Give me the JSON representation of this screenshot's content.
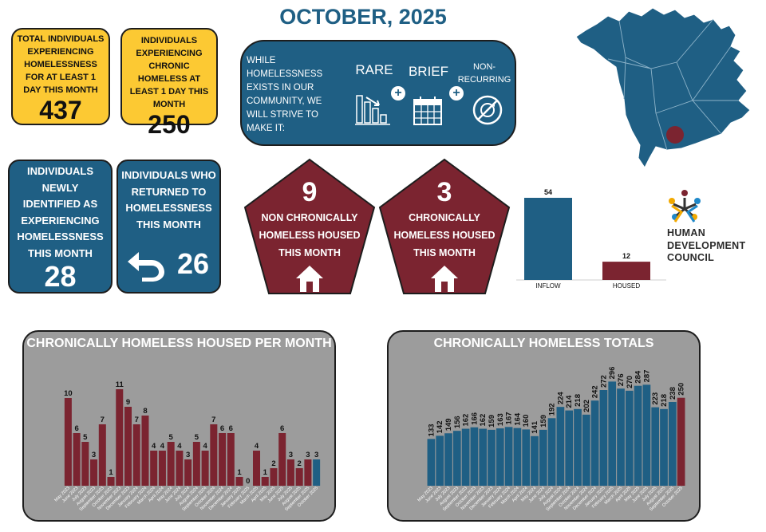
{
  "title": "OCTOBER, 2025",
  "kpis": {
    "total_label": "TOTAL INDIVIDUALS EXPERIENCING HOMELESSNESS FOR AT LEAST 1 DAY THIS MONTH",
    "total_value": "437",
    "chronic_label": "INDIVIDUALS EXPERIENCING CHRONIC HOMELESS AT LEAST 1 DAY THIS MONTH",
    "chronic_value": "250",
    "new_label": "INDIVIDUALS NEWLY IDENTIFIED AS EXPERIENCING HOMELESSNESS THIS MONTH",
    "new_value": "28",
    "returned_label": "INDIVIDUALS WHO RETURNED TO HOMELESSNESS THIS MONTH",
    "returned_value": "26"
  },
  "strive": {
    "text": "WHILE HOMELESSNESS EXISTS IN OUR COMMUNITY, WE WILL STRIVE TO MAKE IT:",
    "word1": "RARE",
    "word2": "BRIEF",
    "word3": "NON-RECURRING"
  },
  "housed": {
    "non_chronic_value": "9",
    "non_chronic_label": "NON CHRONICALLY HOMELESS HOUSED THIS MONTH",
    "chronic_value": "3",
    "chronic_label": "CHRONICALLY HOMELESS HOUSED THIS MONTH"
  },
  "logo": {
    "text": "HUMAN DEVELOPMENT COUNCIL"
  },
  "colors": {
    "navy": "#1f5f84",
    "maroon": "#7b2430",
    "yellow": "#fcc933",
    "panel": "#9c9c9c"
  },
  "icons": [
    "bar-chart-down-icon",
    "calendar-icon",
    "no-repeat-icon",
    "return-arrow-icon",
    "house-icon",
    "map-pin-icon"
  ],
  "chart_data": [
    {
      "type": "bar",
      "categories": [
        "INFLOW",
        "HOUSED"
      ],
      "values": [
        54,
        12
      ],
      "colors": [
        "#1f5f84",
        "#7b2430"
      ]
    },
    {
      "type": "bar",
      "title": "CHRONICALLY HOMELESS HOUSED PER MONTH",
      "categories": [
        "May 2023",
        "June 2023",
        "July 2023",
        "August 2023",
        "September 2023",
        "October 2023",
        "November 2023",
        "December 2023",
        "January 2024",
        "February 2024",
        "March 2024",
        "April 2024",
        "May 2024",
        "June 2024",
        "July 2024",
        "August 2024",
        "September 2024",
        "October 2024",
        "November 2024",
        "December 2024",
        "January 2025",
        "February 2025",
        "March 2025",
        "April 2025",
        "May 2025",
        "June 2025",
        "July 2025",
        "August 2025",
        "September 2025",
        "October 2025"
      ],
      "values": [
        10,
        6,
        5,
        3,
        7,
        1,
        11,
        9,
        7,
        8,
        4,
        4,
        5,
        4,
        3,
        5,
        4,
        7,
        6,
        6,
        1,
        0,
        4,
        1,
        2,
        6,
        3,
        2,
        3,
        3
      ],
      "ylim": [
        0,
        12
      ],
      "highlight_last": true
    },
    {
      "type": "bar",
      "title": "CHRONICALLY HOMELESS TOTALS",
      "categories": [
        "May 2023",
        "June 2023",
        "July 2023",
        "August 2023",
        "September 2023",
        "October 2023",
        "November 2023",
        "December 2023",
        "January 2024",
        "February 2024",
        "March 2024",
        "April 2024",
        "May 2024",
        "June 2024",
        "July 2024",
        "August 2024",
        "September 2024",
        "October 2024",
        "November 2024",
        "December 2024",
        "January 2025",
        "February 2025",
        "March 2025",
        "April 2025",
        "May 2025",
        "June 2025",
        "July 2025",
        "August 2025",
        "September 2025",
        "October 2025"
      ],
      "values": [
        133,
        142,
        149,
        156,
        162,
        166,
        162,
        159,
        163,
        167,
        164,
        160,
        141,
        159,
        192,
        224,
        214,
        218,
        202,
        242,
        272,
        296,
        276,
        270,
        284,
        287,
        223,
        218,
        238,
        250
      ],
      "ylim": [
        0,
        340
      ],
      "highlight_last": true
    }
  ]
}
